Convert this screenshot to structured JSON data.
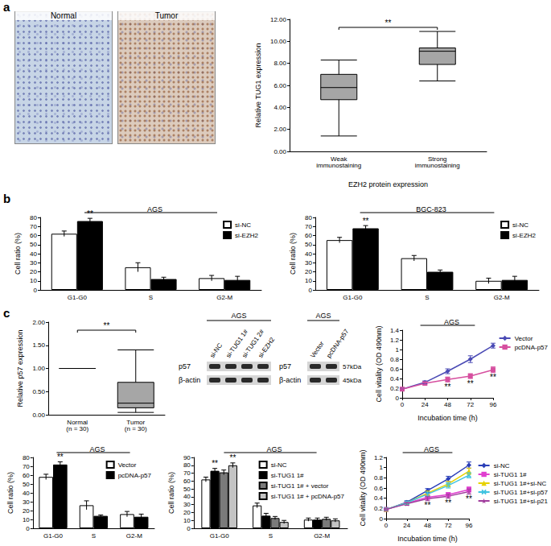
{
  "figure": {
    "panel_labels": [
      "a",
      "b",
      "c"
    ],
    "images": [
      {
        "label": "Normal"
      },
      {
        "label": "Tumor"
      }
    ],
    "blots": [
      {
        "title": "AGS",
        "lanes": [
          "si-NC",
          "si-TUG1 1#",
          "si-TUG1 2#",
          "si-EZH2"
        ],
        "rows": [
          {
            "label": "p57"
          },
          {
            "label": "β-actin"
          }
        ]
      },
      {
        "title": "AGS",
        "lanes": [
          "Vector",
          "pcDNA-p57"
        ],
        "rows": [
          {
            "label": "p57",
            "size": "57kDa"
          },
          {
            "label": "β-actin",
            "size": "45kDa"
          }
        ]
      }
    ]
  },
  "chart_data": [
    {
      "type": "boxplot",
      "y_label": "Relative TUG1 expression",
      "x_label": "EZH2 protein expression",
      "categories": [
        "Weak immunostaining",
        "Strong immunostaining"
      ],
      "values": [
        [
          1.4,
          4.7,
          5.8,
          7.0,
          8.3
        ],
        [
          6.4,
          7.9,
          9.1,
          9.4,
          10.9
        ]
      ],
      "color": "#a6a6a6",
      "ylim": [
        0,
        12
      ],
      "yticks": [
        {
          "value": 0,
          "label": "0.00"
        },
        {
          "value": 2,
          "label": "2.00"
        },
        {
          "value": 4,
          "label": "4.00"
        },
        {
          "value": 6,
          "label": "6.00"
        },
        {
          "value": 8,
          "label": "8.00"
        },
        {
          "value": 10,
          "label": "10.00"
        },
        {
          "value": 12,
          "label": "12.00"
        }
      ],
      "grid": false,
      "annotations": [
        {
          "text": "**",
          "between": [
            "Weak immunostaining",
            "Strong immunostaining"
          ]
        }
      ]
    },
    {
      "type": "bar",
      "title": "AGS",
      "y_label": "Cell ratio (%)",
      "categories": [
        "G1-G0",
        "S",
        "G2-M"
      ],
      "series": [
        {
          "name": "si-NC",
          "color": "#ffffff",
          "values": [
            62,
            25,
            13
          ],
          "errors": [
            3,
            5,
            3
          ]
        },
        {
          "name": "si-EZH2",
          "color": "#000000",
          "values": [
            76,
            12,
            11
          ],
          "errors": [
            3,
            2,
            4
          ]
        }
      ],
      "ylim": [
        0,
        80
      ],
      "yticks": [
        0,
        10,
        20,
        30,
        40,
        50,
        60,
        70,
        80
      ],
      "grid": false,
      "legend": "top-right",
      "annotations": [
        {
          "text": "**",
          "series": "si-EZH2",
          "category": "G1-G0"
        }
      ]
    },
    {
      "type": "bar",
      "title": "BGC-823",
      "y_label": "Cell ratio (%)",
      "categories": [
        "G1-G0",
        "S",
        "G2-M"
      ],
      "series": [
        {
          "name": "si-NC",
          "color": "#ffffff",
          "values": [
            55,
            35,
            10
          ],
          "errors": [
            3,
            3,
            3
          ]
        },
        {
          "name": "si-EZH2",
          "color": "#000000",
          "values": [
            68,
            20,
            11
          ],
          "errors": [
            3,
            2,
            4
          ]
        }
      ],
      "ylim": [
        0,
        80
      ],
      "yticks": [
        0,
        10,
        20,
        30,
        40,
        50,
        60,
        70,
        80
      ],
      "grid": false,
      "legend": "top-right",
      "annotations": [
        {
          "text": "**",
          "series": "si-EZH2",
          "category": "G1-G0"
        }
      ]
    },
    {
      "type": "boxplot",
      "y_label": "Relative p57 expression",
      "categories": [
        "Normal (n = 30)",
        "Tumor (n = 30)"
      ],
      "values": [
        [
          1,
          1,
          1,
          1,
          1
        ],
        [
          0.05,
          0.15,
          0.25,
          0.7,
          1.4
        ]
      ],
      "color": "#a6a6a6",
      "ylim": [
        0,
        2
      ],
      "yticks": [
        {
          "value": 0,
          "label": "0.00"
        },
        {
          "value": 0.5,
          "label": "0.50"
        },
        {
          "value": 1,
          "label": "1.00"
        },
        {
          "value": 1.5,
          "label": "1.50"
        },
        {
          "value": 2,
          "label": "2.00"
        }
      ],
      "grid": false,
      "annotations": [
        {
          "text": "**",
          "between": [
            "Normal (n = 30)",
            "Tumor (n = 30)"
          ]
        }
      ]
    },
    {
      "type": "line",
      "title": "AGS",
      "y_label": "Cell vitality (OD 490nm)",
      "x_label": "Incubation time (h)",
      "x": [
        0,
        24,
        48,
        72,
        96
      ],
      "xlim": [
        0,
        96
      ],
      "xticks": [
        0,
        24,
        48,
        72,
        96
      ],
      "ylim": [
        0,
        1.4
      ],
      "yticks": [
        0,
        0.2,
        0.4,
        0.6,
        0.8,
        1,
        1.2,
        1.4
      ],
      "series": [
        {
          "name": "Vector",
          "color": "#4b4bb5",
          "marker": "diamond",
          "values": [
            0.18,
            0.32,
            0.55,
            0.8,
            1.08
          ],
          "errors": [
            0.02,
            0.03,
            0.05,
            0.07,
            0.05
          ]
        },
        {
          "name": "pcDNA-p57",
          "color": "#d64f9f",
          "marker": "square",
          "values": [
            0.18,
            0.3,
            0.38,
            0.45,
            0.58
          ],
          "errors": [
            0.02,
            0.03,
            0.05,
            0.05,
            0.06
          ]
        }
      ],
      "grid": false,
      "legend": "right",
      "annotations": [
        {
          "text": "**",
          "series": "pcDNA-p57",
          "x": 48
        },
        {
          "text": "**",
          "series": "pcDNA-p57",
          "x": 72
        },
        {
          "text": "**",
          "series": "pcDNA-p57",
          "x": 96
        }
      ]
    },
    {
      "type": "bar",
      "title": "AGS",
      "y_label": "Cell ratio (%)",
      "categories": [
        "G1-G0",
        "S",
        "G2-M"
      ],
      "series": [
        {
          "name": "Vector",
          "color": "#ffffff",
          "values": [
            58,
            26,
            16
          ],
          "errors": [
            3,
            5,
            3
          ]
        },
        {
          "name": "pcDNA-p57",
          "color": "#000000",
          "values": [
            72,
            14,
            13
          ],
          "errors": [
            3,
            1,
            3
          ]
        }
      ],
      "ylim": [
        0,
        80
      ],
      "yticks": [
        0,
        10,
        20,
        30,
        40,
        50,
        60,
        70,
        80
      ],
      "grid": false,
      "legend": "top-right",
      "annotations": [
        {
          "text": "**",
          "series": "pcDNA-p57",
          "category": "G1-G0"
        }
      ]
    },
    {
      "type": "bar",
      "title": "AGS",
      "y_label": "Cell ratio (%)",
      "categories": [
        "G1-G0",
        "S",
        "G2-M"
      ],
      "series": [
        {
          "name": "si-NC",
          "color": "#ffffff",
          "values": [
            62,
            29,
            11
          ],
          "errors": [
            3,
            3,
            2
          ]
        },
        {
          "name": "si-TUG1 1#",
          "color": "#000000",
          "values": [
            73,
            16,
            11
          ],
          "errors": [
            3,
            3,
            2
          ]
        },
        {
          "name": "si-TUG1 1# + vector",
          "color": "#7a7a7a",
          "values": [
            71,
            13,
            12
          ],
          "errors": [
            3,
            2,
            2
          ]
        },
        {
          "name": "si-TUG1 1# + pcDNA-p57",
          "color": "#c4c4c4",
          "values": [
            80,
            8,
            10
          ],
          "errors": [
            3,
            2,
            2
          ]
        }
      ],
      "ylim": [
        0,
        90
      ],
      "yticks": [
        0,
        10,
        20,
        30,
        40,
        50,
        60,
        70,
        80,
        90
      ],
      "grid": false,
      "legend": "top-right",
      "annotations": [
        {
          "text": "**",
          "series": "si-TUG1 1#",
          "category": "G1-G0"
        },
        {
          "text": "**",
          "series": "si-TUG1 1# + pcDNA-p57",
          "category": "G1-G0"
        }
      ]
    },
    {
      "type": "line",
      "title": "AGS",
      "y_label": "Cell vitality (OD 490nm)",
      "x_label": "Incubation time (h)",
      "x": [
        0,
        24,
        48,
        72,
        96
      ],
      "xlim": [
        0,
        96
      ],
      "xticks": [
        0,
        24,
        48,
        72,
        96
      ],
      "ylim": [
        0,
        1.2
      ],
      "yticks": [
        0,
        0.2,
        0.4,
        0.6,
        0.8,
        1,
        1.2
      ],
      "series": [
        {
          "name": "si-NC",
          "color": "#2b3fb8",
          "marker": "diamond",
          "values": [
            0.18,
            0.32,
            0.55,
            0.78,
            1.05
          ],
          "errors": [
            0.02,
            0.03,
            0.04,
            0.05,
            0.06
          ]
        },
        {
          "name": "si-TUG1 1#",
          "color": "#e03fd0",
          "marker": "square",
          "values": [
            0.18,
            0.3,
            0.42,
            0.47,
            0.57
          ],
          "errors": [
            0.02,
            0.03,
            0.04,
            0.04,
            0.05
          ]
        },
        {
          "name": "si-TUG1 1#+si-NC",
          "color": "#e6d200",
          "marker": "triangle",
          "values": [
            0.18,
            0.31,
            0.5,
            0.68,
            0.93
          ],
          "errors": [
            0.02,
            0.03,
            0.04,
            0.05,
            0.06
          ]
        },
        {
          "name": "si-TUG1 1#+si-p57",
          "color": "#3fc3e0",
          "marker": "cross",
          "values": [
            0.18,
            0.31,
            0.48,
            0.65,
            0.85
          ],
          "errors": [
            0.02,
            0.03,
            0.04,
            0.05,
            0.05
          ]
        },
        {
          "name": "si-TUG1 1#+si-p21",
          "color": "#a03c9c",
          "marker": "star",
          "values": [
            0.18,
            0.29,
            0.39,
            0.44,
            0.53
          ],
          "errors": [
            0.02,
            0.03,
            0.04,
            0.04,
            0.05
          ]
        }
      ],
      "grid": false,
      "legend": "right",
      "annotations": [
        {
          "text": "**",
          "series": "si-TUG1 1#+si-p21",
          "x": 48
        },
        {
          "text": "**",
          "series": "si-TUG1 1#+si-p21",
          "x": 72
        },
        {
          "text": "**",
          "series": "si-TUG1 1#+si-p21",
          "x": 96
        }
      ]
    }
  ]
}
